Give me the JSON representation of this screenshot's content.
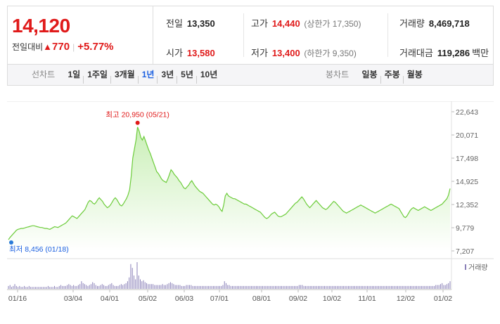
{
  "quote": {
    "price": "14,120",
    "change_label": "전일대비",
    "change_arrow": "▲",
    "change_value": "770",
    "change_rate": "+5.77%",
    "prev_close": {
      "label": "전일",
      "value": "13,350"
    },
    "high": {
      "label": "고가",
      "value": "14,440",
      "limit_label": "상한가",
      "limit_value": "17,350"
    },
    "volume": {
      "label": "거래량",
      "value": "8,469,718"
    },
    "open": {
      "label": "시가",
      "value": "13,580"
    },
    "low": {
      "label": "저가",
      "value": "13,400",
      "limit_label": "하한가",
      "limit_value": "9,350"
    },
    "amount": {
      "label": "거래대금",
      "value": "119,286",
      "unit": "백만"
    }
  },
  "tabs": {
    "line_title": "선차트",
    "line_items": [
      "1일",
      "1주일",
      "3개월",
      "1년",
      "3년",
      "5년",
      "10년"
    ],
    "line_active": "1년",
    "candle_title": "봉차트",
    "candle_items": [
      "일봉",
      "주봉",
      "월봉"
    ]
  },
  "colors": {
    "up": "#e01a1a",
    "line": "#6ccc3a",
    "fill_top": "#c9efb6",
    "volume": "#8a80b8",
    "low_marker": "#2a7ad8"
  },
  "chart_data": {
    "type": "area",
    "title": "",
    "y_ticks": [
      "22,643",
      "20,071",
      "17,498",
      "14,925",
      "12,352",
      "9,779",
      "7,207"
    ],
    "ylim": [
      7207,
      22643
    ],
    "x_ticks": [
      "01/16",
      "03/04",
      "04/01",
      "05/02",
      "06/03",
      "07/01",
      "08/01",
      "09/02",
      "10/02",
      "11/01",
      "12/02",
      "01/02"
    ],
    "max_annotation": {
      "label": "최고",
      "value": "20,950",
      "date": "(05/21)"
    },
    "min_annotation": {
      "label": "최저",
      "value": "8,456",
      "date": "(01/18)"
    },
    "volume_legend": "거래량",
    "series": [
      {
        "name": "",
        "values": [
          8456,
          8700,
          8900,
          9100,
          9300,
          9500,
          9600,
          9650,
          9700,
          9700,
          9750,
          9800,
          9850,
          9900,
          9950,
          10000,
          10000,
          9950,
          9900,
          9850,
          9800,
          9800,
          9750,
          9700,
          9700,
          9650,
          9600,
          9700,
          9800,
          9900,
          9850,
          9800,
          9900,
          10000,
          10100,
          10200,
          10300,
          10500,
          10700,
          10900,
          11100,
          11000,
          10900,
          10800,
          11000,
          11200,
          11400,
          11600,
          11800,
          12200,
          12600,
          12800,
          12700,
          12500,
          12400,
          12600,
          12900,
          13100,
          12900,
          12700,
          12400,
          12200,
          12000,
          12100,
          12300,
          12600,
          12900,
          13100,
          12900,
          12600,
          12300,
          12200,
          12400,
          12700,
          13000,
          13400,
          14000,
          15500,
          17500,
          18500,
          19500,
          20950,
          20500,
          19800,
          19500,
          19900,
          19400,
          18900,
          18400,
          18000,
          17500,
          17000,
          16500,
          16000,
          15800,
          15500,
          15200,
          15000,
          14900,
          14800,
          15200,
          15700,
          16200,
          16000,
          15700,
          15500,
          15300,
          15000,
          14800,
          14500,
          14200,
          14100,
          14300,
          14500,
          14800,
          15000,
          14700,
          14400,
          14200,
          14000,
          13800,
          13700,
          13600,
          13400,
          13200,
          13000,
          12800,
          12600,
          12400,
          12300,
          12400,
          12300,
          12100,
          11800,
          11600,
          12300,
          13300,
          13600,
          13300,
          13200,
          13100,
          13000,
          13000,
          12900,
          12800,
          12700,
          12600,
          12500,
          12400,
          12400,
          12300,
          12200,
          12100,
          12000,
          11900,
          11800,
          11700,
          11600,
          11500,
          11300,
          11100,
          10900,
          10800,
          10900,
          11100,
          11300,
          11400,
          11500,
          11300,
          11100,
          11000,
          11000,
          11100,
          11200,
          11300,
          11500,
          11700,
          11900,
          12100,
          12300,
          12500,
          12600,
          12800,
          13000,
          13200,
          13000,
          12700,
          12400,
          12200,
          12000,
          12200,
          12400,
          12600,
          12800,
          12600,
          12400,
          12200,
          12000,
          11900,
          11800,
          11900,
          12100,
          12300,
          12500,
          12700,
          12600,
          12400,
          12200,
          12000,
          11800,
          11600,
          11500,
          11400,
          11500,
          11600,
          11700,
          11800,
          11900,
          12000,
          12100,
          12200,
          12300,
          12200,
          12100,
          12000,
          11900,
          11800,
          11700,
          11600,
          11500,
          11400,
          11500,
          11600,
          11700,
          11800,
          11900,
          12000,
          12100,
          12200,
          12300,
          12400,
          12300,
          12200,
          12100,
          12000,
          11900,
          11600,
          11300,
          11000,
          10900,
          11100,
          11400,
          11700,
          11900,
          12000,
          11900,
          11800,
          11700,
          11800,
          11900,
          12000,
          12100,
          12000,
          11900,
          11800,
          11700,
          11800,
          11900,
          12000,
          12100,
          12200,
          12300,
          12400,
          12600,
          12800,
          13000,
          13400,
          14120
        ]
      }
    ],
    "volume": [
      3,
      4,
      2,
      3,
      5,
      3,
      2,
      3,
      2,
      2,
      3,
      2,
      2,
      3,
      2,
      2,
      2,
      2,
      2,
      2,
      2,
      2,
      2,
      2,
      2,
      3,
      2,
      2,
      2,
      3,
      2,
      2,
      3,
      4,
      3,
      3,
      3,
      4,
      5,
      4,
      3,
      4,
      3,
      3,
      4,
      5,
      8,
      6,
      5,
      4,
      3,
      4,
      5,
      7,
      6,
      4,
      3,
      3,
      4,
      5,
      4,
      3,
      3,
      4,
      5,
      6,
      4,
      3,
      3,
      3,
      4,
      5,
      4,
      5,
      6,
      8,
      12,
      26,
      22,
      14,
      10,
      28,
      14,
      10,
      8,
      9,
      7,
      6,
      5,
      5,
      5,
      5,
      4,
      4,
      4,
      4,
      4,
      5,
      4,
      4,
      5,
      6,
      7,
      6,
      5,
      4,
      4,
      4,
      4,
      3,
      3,
      3,
      4,
      4,
      4,
      4,
      3,
      3,
      3,
      3,
      3,
      3,
      3,
      3,
      3,
      3,
      3,
      3,
      3,
      3,
      3,
      3,
      3,
      3,
      3,
      4,
      8,
      6,
      4,
      4,
      3,
      3,
      3,
      3,
      3,
      3,
      3,
      3,
      3,
      3,
      3,
      3,
      3,
      3,
      3,
      3,
      3,
      3,
      3,
      3,
      3,
      3,
      3,
      3,
      3,
      3,
      3,
      3,
      3,
      3,
      3,
      3,
      3,
      3,
      3,
      3,
      3,
      3,
      3,
      3,
      3,
      3,
      3,
      4,
      4,
      4,
      3,
      3,
      3,
      3,
      3,
      3,
      3,
      3,
      3,
      3,
      3,
      3,
      3,
      3,
      3,
      3,
      3,
      3,
      3,
      3,
      3,
      3,
      3,
      3,
      3,
      3,
      3,
      3,
      3,
      3,
      3,
      3,
      3,
      3,
      3,
      3,
      3,
      3,
      3,
      3,
      3,
      3,
      3,
      3,
      3,
      3,
      3,
      3,
      3,
      3,
      3,
      3,
      3,
      3,
      3,
      3,
      3,
      3,
      3,
      3,
      3,
      3,
      3,
      3,
      3,
      3,
      3,
      3,
      3,
      3,
      3,
      3,
      3,
      3,
      3,
      3,
      3,
      3,
      3,
      3,
      3,
      3,
      3,
      4,
      4,
      4,
      5,
      6,
      4,
      4,
      5,
      6,
      8
    ]
  }
}
